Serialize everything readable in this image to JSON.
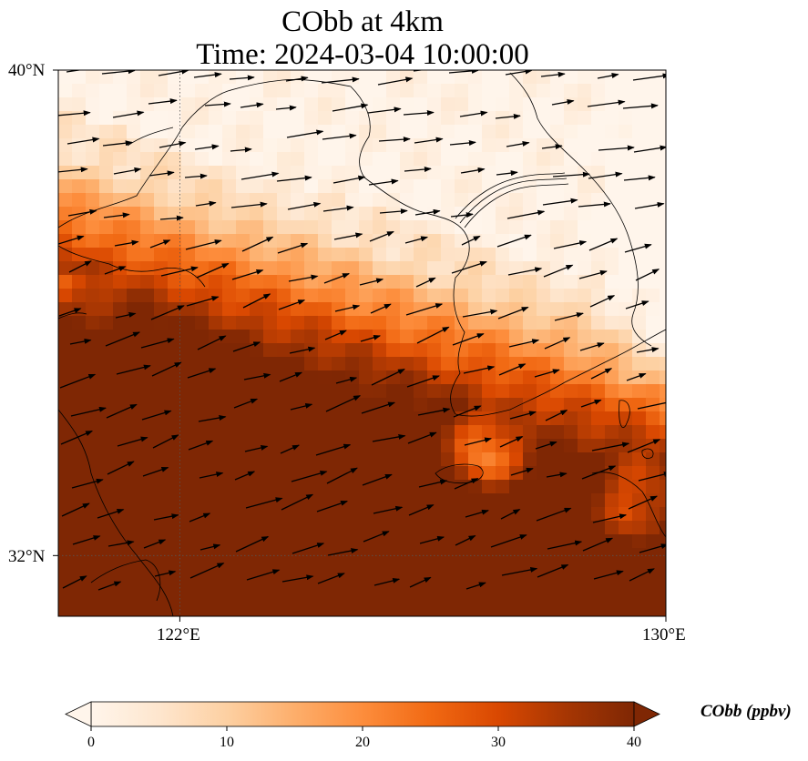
{
  "title": {
    "line1": "CObb at 4km",
    "line2": "Time: 2024-03-04 10:00:00"
  },
  "axes": {
    "lon_ticks": [
      {
        "value": 122,
        "label": "122°E"
      },
      {
        "value": 130,
        "label": "130°E"
      }
    ],
    "lat_ticks": [
      {
        "value": 40,
        "label": "40°N"
      },
      {
        "value": 32,
        "label": "32°N"
      }
    ],
    "lon_range": [
      120,
      130
    ],
    "lat_range": [
      31,
      40
    ]
  },
  "colorbar": {
    "label": "CObb (ppbv)",
    "min": 0,
    "max": 40,
    "extend": "both",
    "ticks": [
      {
        "value": 0,
        "label": "0"
      },
      {
        "value": 10,
        "label": "10"
      },
      {
        "value": 20,
        "label": "20"
      },
      {
        "value": 30,
        "label": "30"
      },
      {
        "value": 40,
        "label": "40"
      }
    ],
    "colors": [
      "#fff5eb",
      "#fee6ce",
      "#fdd0a2",
      "#fdae6b",
      "#fd8d3c",
      "#f16913",
      "#d94801",
      "#a63603",
      "#7f2704"
    ]
  },
  "map_layers": {
    "field": "CObb concentration (ppbv)",
    "wind_vectors": true,
    "coastlines": true,
    "gridlines": "dotted"
  }
}
